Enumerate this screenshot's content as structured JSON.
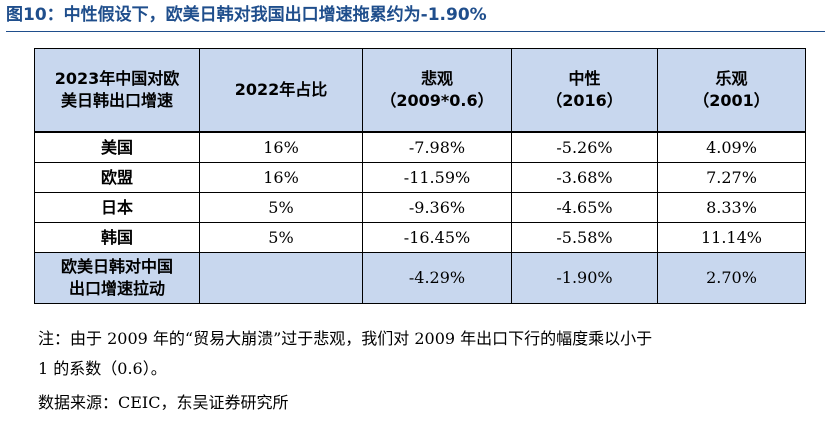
{
  "title": "图10：中性假设下，欧美日韩对我国出口增速拖累约为-1.90%",
  "table": {
    "header": {
      "col0_line1": "2023年中国对欧",
      "col0_line2": "美日韩出口增速",
      "col1": "2022年占比",
      "col2_line1": "悲观",
      "col2_line2": "（2009*0.6）",
      "col3_line1": "中性",
      "col3_line2": "（2016）",
      "col4_line1": "乐观",
      "col4_line2": "（2001）"
    },
    "rows": [
      {
        "label": "美国",
        "share": "16%",
        "pessimistic": "-7.98%",
        "neutral": "-5.26%",
        "optimistic": "4.09%"
      },
      {
        "label": "欧盟",
        "share": "16%",
        "pessimistic": "-11.59%",
        "neutral": "-3.68%",
        "optimistic": "7.27%"
      },
      {
        "label": "日本",
        "share": "5%",
        "pessimistic": "-9.36%",
        "neutral": "-4.65%",
        "optimistic": "8.33%"
      },
      {
        "label": "韩国",
        "share": "5%",
        "pessimistic": "-16.45%",
        "neutral": "-5.58%",
        "optimistic": "11.14%"
      }
    ],
    "footer": {
      "label_line1": "欧美日韩对中国",
      "label_line2": "出口增速拉动",
      "share": "",
      "pessimistic": "-4.29%",
      "neutral": "-1.90%",
      "optimistic": "2.70%"
    }
  },
  "note_line1": "注：由于 2009 年的“贸易大崩溃”过于悲观，我们对 2009 年出口下行的幅度乘以小于",
  "note_line2": "1 的系数（0.6）。",
  "source": "数据来源：CEIC，东吴证券研究所"
}
